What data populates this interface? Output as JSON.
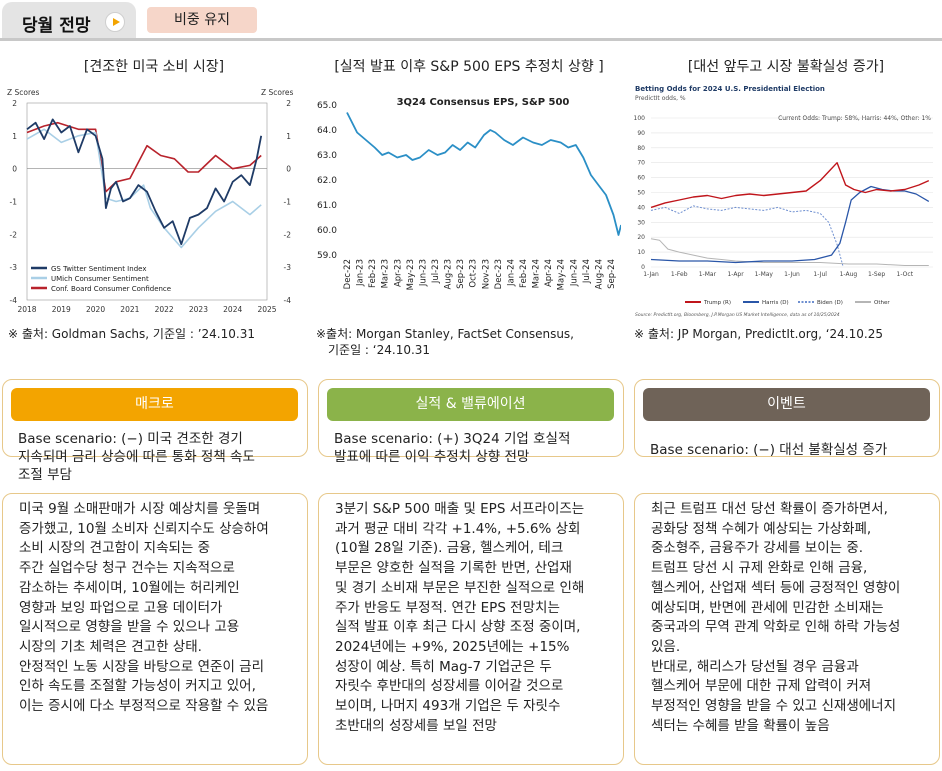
{
  "header": {
    "title": "당월 전망",
    "badge": "비중 유지"
  },
  "panels": [
    {
      "title": "[견조한 미국 소비 시장]",
      "source": "※ 출처: Goldman Sachs, 기준일 : ’24.10.31"
    },
    {
      "title": "[실적 발표 이후 S&P 500 EPS 추정치 상향 ]",
      "source_line1": "※출처: Morgan Stanley, FactSet Consensus,",
      "source_line2": "기준일 : ‘24.10.31"
    },
    {
      "title": "[대선 앞두고 시장 불확실성 증가]",
      "source": "※ 출처: JP Morgan, PredictIt.org, ‘24.10.25"
    }
  ],
  "cards": [
    {
      "header": "매크로",
      "scenario": "Base scenario: (−) 미국 견조한 경기\n지속되며 금리 상승에 따른 통화 정책 속도\n조절 부담",
      "body": "미국 9월 소매판매가 시장 예상치를 웃돌며\n증가했고, 10월 소비자 신뢰지수도 상승하여\n소비 시장의 견고함이 지속되는 중\n주간 실업수당 청구 건수는 지속적으로\n감소하는 추세이며, 10월에는 허리케인\n영향과 보잉 파업으로 고용 데이터가\n일시적으로 영향을 받을 수 있으나 고용\n시장의 기초 체력은 견고한 상태.\n안정적인 노동 시장을 바탕으로 연준이 금리\n인하 속도를 조절할 가능성이 커지고 있어,\n이는 증시에 다소 부정적으로 작용할 수 있음",
      "color": "#f3a400"
    },
    {
      "header": "실적 & 밸류에이션",
      "scenario": "Base scenario: (+) 3Q24 기업 호실적\n발표에 따른 이익 추정치 상향 전망",
      "body": "3분기 S&P 500 매출 및 EPS 서프라이즈는\n과거 평균 대비 각각 +1.4%, +5.6% 상회\n(10월 28일 기준). 금융, 헬스케어, 테크\n부문은 양호한 실적을 기록한 반면, 산업재\n및 경기 소비재 부문은 부진한 실적으로 인해\n주가 반응도 부정적. 연간 EPS 전망치는\n실적 발표 이후 최근 다시 상향 조정 중이며,\n2024년에는 +9%, 2025년에는 +15%\n성장이 예상. 특히 Mag-7 기업군은 두\n자릿수 후반대의 성장세를 이어갈 것으로\n보이며, 나머지 493개 기업은 두 자릿수\n초반대의 성장세를 보일 전망",
      "color": "#8bb34a"
    },
    {
      "header": "이벤트",
      "scenario": "Base scenario: (−) 대선 불확실성 증가",
      "body": "최근 트럼프 대선 당선 확률이 증가하면서,\n공화당 정책 수혜가 예상되는 가상화폐,\n중소형주, 금융주가 강세를 보이는 중.\n트럼프 당선 시 규제 완화로 인해 금융,\n헬스케어, 산업재 섹터 등에 긍정적인 영향이\n예상되며, 반면에 관세에 민감한 소비재는\n중국과의 무역 관계 악화로 인해 하락 가능성\n있음.\n반대로, 해리스가 당선될 경우 금융과\n헬스케어 부문에 대한 규제 압력이 커져\n부정적인 영향을 받을 수 있고 신재생에너지\n섹터는 수혜를 받을 확률이 높음",
      "color": "#6f6358"
    }
  ],
  "chart_data": [
    {
      "type": "line",
      "title": "",
      "ylabel_left": "Z Scores",
      "ylabel_right": "Z Scores",
      "ylim": [
        -4,
        2
      ],
      "yticks": [
        "2",
        "1",
        "0",
        "-1",
        "-2",
        "-3",
        "-4"
      ],
      "x_ticks": [
        "2018",
        "2019",
        "2020",
        "2021",
        "2022",
        "2023",
        "2024",
        "2025"
      ],
      "legend": [
        "GS Twitter Sentiment Index",
        "UMich Consumer Sentiment",
        "Conf. Board Consumer Confidence"
      ],
      "series": [
        {
          "name": "GS Twitter Sentiment Index",
          "color": "#1f3b66",
          "x": [
            2018.0,
            2018.25,
            2018.5,
            2018.75,
            2019.0,
            2019.25,
            2019.5,
            2019.75,
            2020.0,
            2020.2,
            2020.3,
            2020.45,
            2020.6,
            2020.8,
            2021.0,
            2021.25,
            2021.5,
            2021.75,
            2022.0,
            2022.25,
            2022.5,
            2022.75,
            2023.0,
            2023.25,
            2023.5,
            2023.75,
            2024.0,
            2024.25,
            2024.5,
            2024.7,
            2024.83
          ],
          "values": [
            1.2,
            1.4,
            0.9,
            1.5,
            1.1,
            1.3,
            0.5,
            1.2,
            1.0,
            0.3,
            -1.2,
            -0.6,
            -0.4,
            -1.0,
            -0.9,
            -0.5,
            -0.7,
            -1.3,
            -1.8,
            -1.6,
            -2.3,
            -1.5,
            -1.4,
            -1.2,
            -0.6,
            -1.0,
            -0.4,
            -0.2,
            -0.5,
            0.3,
            1.0
          ]
        },
        {
          "name": "UMich Consumer Sentiment",
          "color": "#a9cfe6",
          "x": [
            2018.0,
            2018.5,
            2019.0,
            2019.5,
            2020.0,
            2020.3,
            2020.6,
            2021.0,
            2021.4,
            2021.6,
            2022.0,
            2022.5,
            2023.0,
            2023.5,
            2024.0,
            2024.5,
            2024.83
          ],
          "values": [
            0.9,
            1.2,
            0.8,
            1.0,
            1.1,
            -0.9,
            -1.0,
            -0.9,
            -0.5,
            -1.2,
            -1.8,
            -2.4,
            -1.8,
            -1.3,
            -1.0,
            -1.4,
            -1.1
          ]
        },
        {
          "name": "Conf. Board Consumer Confidence",
          "color": "#b8232c",
          "x": [
            2018.0,
            2018.5,
            2018.9,
            2019.5,
            2020.0,
            2020.3,
            2020.6,
            2021.0,
            2021.5,
            2021.9,
            2022.3,
            2022.7,
            2023.0,
            2023.5,
            2024.0,
            2024.5,
            2024.83
          ],
          "values": [
            1.1,
            1.3,
            1.4,
            1.2,
            1.2,
            -0.7,
            -0.4,
            -0.3,
            0.7,
            0.4,
            0.3,
            -0.1,
            -0.1,
            0.4,
            0.0,
            0.1,
            0.4
          ]
        }
      ]
    },
    {
      "type": "line",
      "title": "3Q24 Consensus EPS, S&P 500",
      "ylim": [
        59.0,
        65.0
      ],
      "yticks": [
        "65.0",
        "64.0",
        "63.0",
        "62.0",
        "61.0",
        "60.0",
        "59.0"
      ],
      "categories": [
        "Dec-22",
        "Jan-23",
        "Feb-23",
        "Mar-23",
        "Apr-23",
        "May-23",
        "Jun-23",
        "Jul-23",
        "Aug-23",
        "Sep-23",
        "Oct-23",
        "Nov-23",
        "Dec-23",
        "Jan-24",
        "Feb-24",
        "Mar-24",
        "Apr-24",
        "May-24",
        "Jun-24",
        "Jul-24",
        "Aug-24",
        "Sep-24"
      ],
      "series": [
        {
          "name": "3Q24 Consensus EPS",
          "color": "#2b8fc6",
          "x": [
            0,
            0.3,
            0.8,
            1.5,
            2.2,
            2.8,
            3.3,
            4.0,
            4.7,
            5.2,
            5.8,
            6.5,
            7.2,
            7.8,
            8.4,
            9.0,
            9.6,
            10.2,
            10.9,
            11.4,
            11.8,
            12.5,
            13.2,
            14.0,
            14.8,
            15.5,
            16.2,
            17.0,
            17.6,
            18.2,
            18.8,
            19.4,
            20.0,
            20.6,
            21.2,
            21.6,
            21.8
          ],
          "values": [
            64.7,
            64.4,
            63.9,
            63.6,
            63.3,
            63.0,
            63.1,
            62.9,
            63.0,
            62.8,
            62.9,
            63.2,
            63.0,
            63.1,
            63.4,
            63.2,
            63.5,
            63.3,
            63.8,
            64.0,
            63.9,
            63.6,
            63.4,
            63.7,
            63.5,
            63.4,
            63.6,
            63.5,
            63.3,
            63.4,
            62.9,
            62.2,
            61.8,
            61.4,
            60.6,
            59.8,
            60.2
          ]
        }
      ]
    },
    {
      "type": "line",
      "title": "Betting Odds for 2024 U.S. Presidential Election",
      "subtitle": "PredictIt odds, %",
      "annotation": "Current Odds: Trump: 58%, Harris: 44%, Other: 1%",
      "ylim": [
        0,
        100
      ],
      "yticks": [
        "100",
        "90",
        "80",
        "70",
        "60",
        "50",
        "40",
        "30",
        "20",
        "10",
        "0"
      ],
      "x_ticks": [
        "1-Jan",
        "1-Feb",
        "1-Mar",
        "1-Apr",
        "1-May",
        "1-Jun",
        "1-Jul",
        "1-Aug",
        "1-Sep",
        "1-Oct"
      ],
      "legend": [
        "Trump (R)",
        "Harris (D)",
        "Biden (D)",
        "Other"
      ],
      "footnote": "Source: PredictIt.org, Bloomberg, J.P.Morgan US Market Intelligence, data as of 10/25/2024",
      "series": [
        {
          "name": "Trump (R)",
          "color": "#c0151b",
          "x": [
            0,
            0.5,
            1.0,
            1.5,
            2.0,
            2.5,
            3.0,
            3.5,
            4.0,
            4.5,
            5.0,
            5.5,
            6.0,
            6.3,
            6.6,
            6.9,
            7.2,
            7.6,
            8.0,
            8.5,
            9.0,
            9.5,
            9.85
          ],
          "values": [
            40,
            43,
            45,
            47,
            48,
            46,
            48,
            49,
            48,
            49,
            50,
            51,
            58,
            64,
            70,
            55,
            52,
            50,
            52,
            51,
            52,
            55,
            58
          ]
        },
        {
          "name": "Harris (D)",
          "color": "#2a56a8",
          "x": [
            0,
            1,
            2,
            3,
            4,
            5,
            5.8,
            6.4,
            6.7,
            6.9,
            7.1,
            7.4,
            7.8,
            8.2,
            8.6,
            9.0,
            9.4,
            9.85
          ],
          "values": [
            5,
            4,
            4,
            3,
            4,
            4,
            5,
            8,
            16,
            30,
            45,
            50,
            54,
            52,
            51,
            51,
            49,
            44
          ]
        },
        {
          "name": "Biden (D)",
          "color": "#6e8fd0",
          "x": [
            0,
            0.5,
            1,
            1.5,
            2,
            2.5,
            3,
            3.5,
            4,
            4.5,
            5,
            5.5,
            6,
            6.3,
            6.6,
            6.8
          ],
          "values": [
            38,
            40,
            36,
            41,
            39,
            38,
            40,
            39,
            38,
            40,
            37,
            38,
            36,
            30,
            15,
            1
          ]
        },
        {
          "name": "Other",
          "color": "#b5b5b5",
          "x": [
            0,
            0.3,
            0.6,
            1,
            1.5,
            2,
            2.5,
            3,
            4,
            5,
            6,
            7,
            8,
            9,
            9.85
          ],
          "values": [
            19,
            18,
            12,
            10,
            8,
            6,
            5,
            4,
            3,
            3,
            3,
            2,
            2,
            1,
            1
          ]
        }
      ]
    }
  ]
}
